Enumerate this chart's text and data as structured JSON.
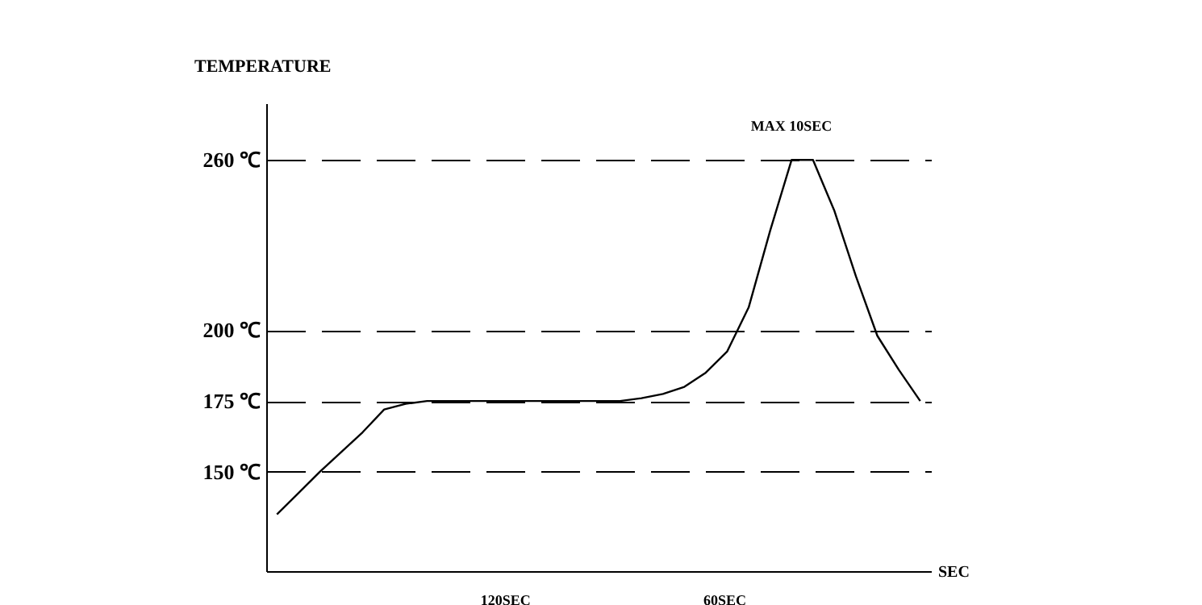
{
  "chart_data": {
    "type": "line",
    "xlabel": "SEC",
    "ylabel": "TEMPERATURE",
    "categories": [
      null,
      null,
      null,
      null,
      null,
      null,
      null,
      null,
      null,
      null,
      null,
      null,
      null,
      null,
      null,
      null,
      null,
      null,
      null,
      null,
      null,
      null,
      null,
      null,
      null,
      null,
      null,
      null,
      null,
      null,
      null
    ],
    "series": [
      {
        "color": "#000000",
        "values": [
          135,
          142.5,
          150,
          157,
          164,
          172,
          174,
          175,
          175,
          175,
          175,
          175,
          175,
          175,
          175,
          175,
          175,
          176,
          177.5,
          180,
          185,
          192.5,
          208,
          235,
          260,
          260,
          242,
          219,
          198,
          186,
          175
        ]
      }
    ],
    "ylim": [
      115,
      280
    ],
    "yticks": [
      {
        "value": 150,
        "label": "150 ℃"
      },
      {
        "value": 175,
        "label": "175 ℃"
      },
      {
        "value": 200,
        "label": "200 ℃"
      },
      {
        "value": 260,
        "label": "260 ℃"
      }
    ],
    "grid": "y",
    "tick_labels": "y",
    "marker": "none",
    "line_style": "solid",
    "annotations": [
      "120SEC",
      "60SEC",
      "MAX 10SEC"
    ]
  }
}
